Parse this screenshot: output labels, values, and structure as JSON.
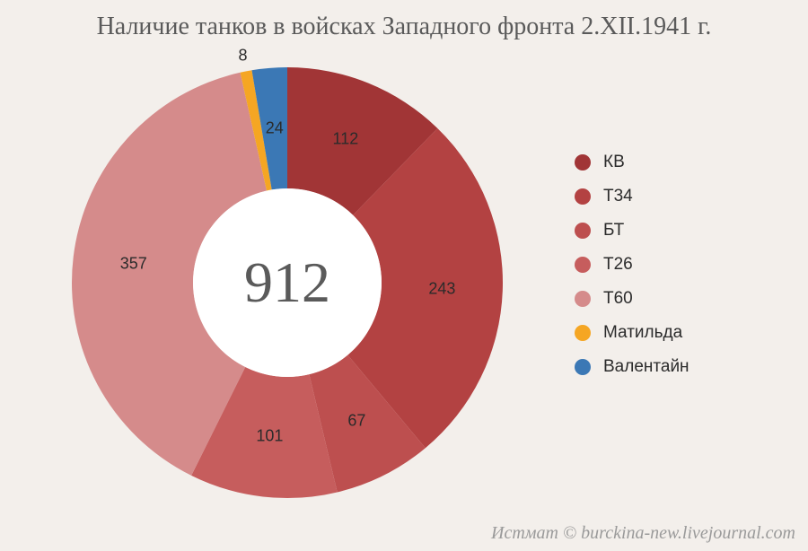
{
  "title": "Наличие танков в войсках Западного фронта 2.XII.1941 г.",
  "chart": {
    "type": "donut",
    "total_label": "912",
    "background_color": "#f3efeb",
    "center_fill": "#ffffff",
    "start_angle_deg": -90,
    "outer_radius": 240,
    "inner_radius": 105,
    "label_fontsize": 18,
    "label_color": "#2b2b2b",
    "title_fontsize": 28,
    "title_color": "#5a5a5a",
    "total_fontsize": 64,
    "segments": [
      {
        "name": "КВ",
        "value": 112,
        "color": "#a13536",
        "label": "112",
        "label_pos": "inner"
      },
      {
        "name": "Т34",
        "value": 243,
        "color": "#b34242",
        "label": "243",
        "label_pos": "inner"
      },
      {
        "name": "БТ",
        "value": 67,
        "color": "#bd4f4f",
        "label": "67",
        "label_pos": "inner"
      },
      {
        "name": "Т26",
        "value": 101,
        "color": "#c65d5d",
        "label": "101",
        "label_pos": "inner"
      },
      {
        "name": "Т60",
        "value": 357,
        "color": "#d58b8b",
        "label": "357",
        "label_pos": "inner"
      },
      {
        "name": "Матильда",
        "value": 8,
        "color": "#f5a623",
        "label": "8",
        "label_pos": "outer"
      },
      {
        "name": "Валентайн",
        "value": 24,
        "color": "#3b78b5",
        "label": "24",
        "label_pos": "inner"
      }
    ]
  },
  "legend": {
    "items": [
      {
        "label": "КВ",
        "color": "#a13536"
      },
      {
        "label": "Т34",
        "color": "#b34242"
      },
      {
        "label": "БТ",
        "color": "#bd4f4f"
      },
      {
        "label": "Т26",
        "color": "#c65d5d"
      },
      {
        "label": "Т60",
        "color": "#d58b8b"
      },
      {
        "label": "Матильда",
        "color": "#f5a623"
      },
      {
        "label": "Валентайн",
        "color": "#3b78b5"
      }
    ],
    "swatch_size": 18,
    "fontsize": 19
  },
  "credit": "Истмат © burckina-new.livejournal.com"
}
